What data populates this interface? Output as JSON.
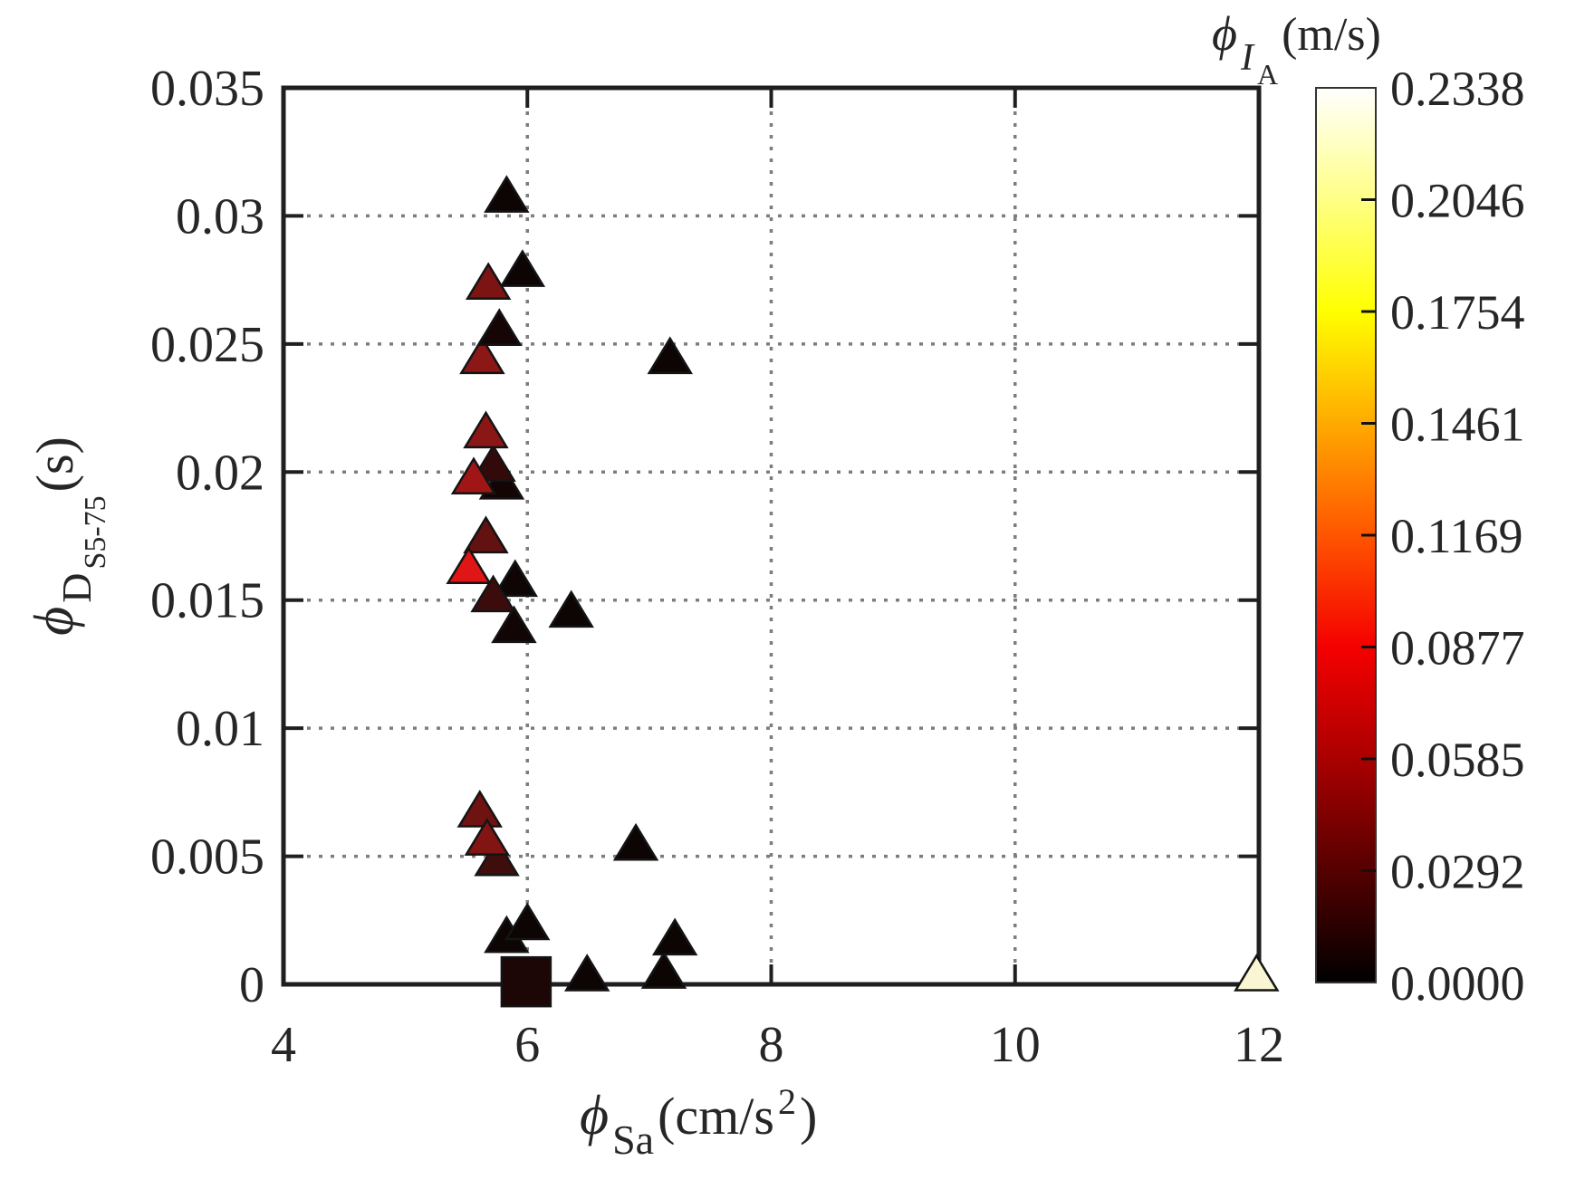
{
  "figure": {
    "background": "#ffffff",
    "axis_color": "#1f1f1f",
    "grid_color": "#7d7d7d",
    "marker_edge_color": "#141414"
  },
  "chart_data": {
    "type": "scatter",
    "title": "",
    "xlabel": {
      "phi": "ϕ",
      "sub": "Sa",
      "unit_prefix": " (cm/s",
      "sup": "2",
      "unit_suffix": ")"
    },
    "ylabel": {
      "phi": "ϕ",
      "sub": "D",
      "subsub": "S5-75",
      "unit": " (s)"
    },
    "xlim": [
      4,
      12
    ],
    "ylim": [
      0,
      0.035
    ],
    "x_ticks": [
      4,
      6,
      8,
      10,
      12
    ],
    "x_tick_labels": [
      "4",
      "6",
      "8",
      "10",
      "12"
    ],
    "y_ticks": [
      0,
      0.005,
      0.01,
      0.015,
      0.02,
      0.025,
      0.03,
      0.035
    ],
    "y_tick_labels": [
      "0",
      "0.005",
      "0.01",
      "0.015",
      "0.02",
      "0.025",
      "0.03",
      "0.035"
    ],
    "x_grid": [
      6,
      8,
      10
    ],
    "y_grid": [
      0.005,
      0.01,
      0.015,
      0.02,
      0.025,
      0.03
    ],
    "grid_on": true,
    "colorbar": {
      "label": {
        "phi": "ϕ",
        "sub": "I",
        "subsub": "A",
        "unit": " (m/s)"
      },
      "min": 0.0,
      "max": 0.2338,
      "tick_labels": [
        "0.2338",
        "0.2046",
        "0.1754",
        "0.1461",
        "0.1169",
        "0.0877",
        "0.0585",
        "0.0292",
        "0.0000"
      ],
      "gradient_top_to_bottom": [
        [
          "0%",
          "#ffffff"
        ],
        [
          "12.5%",
          "#ffff85"
        ],
        [
          "25%",
          "#ffff00"
        ],
        [
          "37.5%",
          "#ffaa00"
        ],
        [
          "50%",
          "#ff5500"
        ],
        [
          "62.5%",
          "#f50000"
        ],
        [
          "75%",
          "#aa0000"
        ],
        [
          "87.5%",
          "#550000"
        ],
        [
          "100%",
          "#000000"
        ]
      ]
    },
    "points": [
      {
        "x": 5.83,
        "y": 0.0307,
        "marker": "triangle",
        "color": "#0d0404",
        "ia_est": 0.004
      },
      {
        "x": 5.96,
        "y": 0.0278,
        "marker": "triangle",
        "color": "#0d0404",
        "ia_est": 0.004
      },
      {
        "x": 5.68,
        "y": 0.0273,
        "marker": "triangle",
        "color": "#7d1414",
        "ia_est": 0.043
      },
      {
        "x": 5.63,
        "y": 0.0244,
        "marker": "triangle",
        "color": "#8b1717",
        "ia_est": 0.048
      },
      {
        "x": 5.77,
        "y": 0.0255,
        "marker": "triangle",
        "color": "#150505",
        "ia_est": 0.007
      },
      {
        "x": 7.17,
        "y": 0.0244,
        "marker": "triangle",
        "color": "#0d0404",
        "ia_est": 0.004
      },
      {
        "x": 5.79,
        "y": 0.0195,
        "marker": "triangle",
        "color": "#140505",
        "ia_est": 0.007
      },
      {
        "x": 5.72,
        "y": 0.0202,
        "marker": "triangle",
        "color": "#330a0a",
        "ia_est": 0.018
      },
      {
        "x": 5.56,
        "y": 0.0197,
        "marker": "triangle",
        "color": "#a01616",
        "ia_est": 0.055
      },
      {
        "x": 5.66,
        "y": 0.0215,
        "marker": "triangle",
        "color": "#8b1616",
        "ia_est": 0.048
      },
      {
        "x": 5.9,
        "y": 0.0157,
        "marker": "triangle",
        "color": "#0f0505",
        "ia_est": 0.005
      },
      {
        "x": 5.72,
        "y": 0.0151,
        "marker": "triangle",
        "color": "#3c0c0c",
        "ia_est": 0.021
      },
      {
        "x": 5.66,
        "y": 0.0174,
        "marker": "triangle",
        "color": "#641111",
        "ia_est": 0.034
      },
      {
        "x": 5.52,
        "y": 0.0162,
        "marker": "triangle",
        "color": "#e01515",
        "ia_est": 0.077
      },
      {
        "x": 5.89,
        "y": 0.0139,
        "marker": "triangle",
        "color": "#120505",
        "ia_est": 0.006
      },
      {
        "x": 6.36,
        "y": 0.0145,
        "marker": "triangle",
        "color": "#0d0404",
        "ia_est": 0.004
      },
      {
        "x": 6.89,
        "y": 0.0054,
        "marker": "triangle",
        "color": "#0d0404",
        "ia_est": 0.004
      },
      {
        "x": 5.61,
        "y": 0.0067,
        "marker": "triangle",
        "color": "#6f1212",
        "ia_est": 0.038
      },
      {
        "x": 5.75,
        "y": 0.0048,
        "marker": "triangle",
        "color": "#400d0d",
        "ia_est": 0.022
      },
      {
        "x": 5.67,
        "y": 0.0056,
        "marker": "triangle",
        "color": "#821414",
        "ia_est": 0.045
      },
      {
        "x": 5.83,
        "y": 0.0018,
        "marker": "triangle",
        "color": "#0d0404",
        "ia_est": 0.004
      },
      {
        "x": 6.0,
        "y": 0.0023,
        "marker": "triangle",
        "color": "#0d0404",
        "ia_est": 0.004
      },
      {
        "x": 6.49,
        "y": 0.0003,
        "marker": "triangle",
        "color": "#0d0404",
        "ia_est": 0.004
      },
      {
        "x": 7.12,
        "y": 0.0004,
        "marker": "triangle",
        "color": "#0d0404",
        "ia_est": 0.004
      },
      {
        "x": 7.21,
        "y": 0.0017,
        "marker": "triangle",
        "color": "#0d0404",
        "ia_est": 0.004
      },
      {
        "x": 5.99,
        "y": 0.0001,
        "marker": "square",
        "color": "#1c0606",
        "ia_est": 0.01
      },
      {
        "x": 11.98,
        "y": 0.0003,
        "marker": "triangle",
        "color": "#faf5d2",
        "ia_est": 0.225
      }
    ]
  }
}
